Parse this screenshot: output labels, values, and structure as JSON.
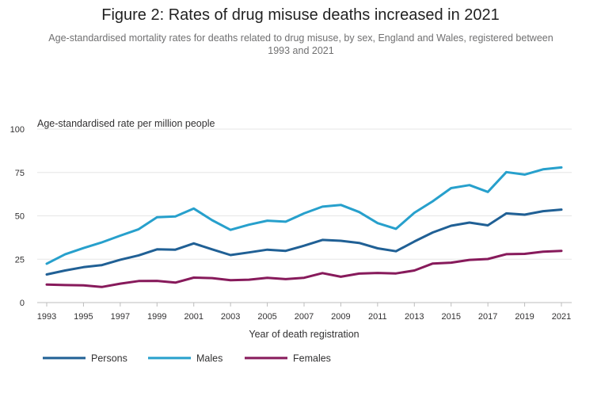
{
  "chart_data": {
    "type": "line",
    "title": "Figure 2: Rates of drug misuse deaths increased in 2021",
    "subtitle": "Age-standardised mortality rates for deaths related to drug misuse, by sex, England and Wales, registered between 1993 and 2021",
    "ylabel": "Age-standardised rate per million people",
    "xlabel": "Year of death registration",
    "ylim": [
      0,
      100
    ],
    "yticks": [
      0,
      25,
      50,
      75,
      100
    ],
    "xticks": [
      1993,
      1995,
      1997,
      1999,
      2001,
      2003,
      2005,
      2007,
      2009,
      2011,
      2013,
      2015,
      2017,
      2019,
      2021
    ],
    "grid": "horizontal",
    "legend_position": "bottom-left",
    "x": [
      1993,
      1994,
      1995,
      1996,
      1997,
      1998,
      1999,
      2000,
      2001,
      2002,
      2003,
      2004,
      2005,
      2006,
      2007,
      2008,
      2009,
      2010,
      2011,
      2012,
      2013,
      2014,
      2015,
      2016,
      2017,
      2018,
      2019,
      2020,
      2021
    ],
    "series": [
      {
        "name": "Persons",
        "color": "#206095",
        "values": [
          16.2,
          18.5,
          20.4,
          21.6,
          24.7,
          27.2,
          30.7,
          30.5,
          34.1,
          30.7,
          27.4,
          28.9,
          30.5,
          29.8,
          32.8,
          36.1,
          35.6,
          34.4,
          31.3,
          29.6,
          35.2,
          40.4,
          44.3,
          46.1,
          44.5,
          51.4,
          50.7,
          52.7,
          53.6
        ]
      },
      {
        "name": "Males",
        "color": "#27A0CC",
        "values": [
          22.4,
          27.8,
          31.4,
          34.7,
          38.6,
          42.3,
          49.2,
          49.7,
          54.2,
          47.5,
          41.9,
          44.9,
          47.2,
          46.6,
          51.4,
          55.3,
          56.3,
          52.2,
          45.8,
          42.5,
          51.8,
          58.4,
          66.0,
          67.7,
          63.8,
          75.2,
          73.8,
          76.8,
          77.9
        ]
      },
      {
        "name": "Females",
        "color": "#871A5B",
        "values": [
          10.4,
          10.1,
          9.9,
          9.0,
          10.9,
          12.4,
          12.5,
          11.5,
          14.4,
          14.1,
          12.9,
          13.2,
          14.3,
          13.5,
          14.3,
          17.0,
          14.9,
          16.7,
          17.1,
          16.8,
          18.5,
          22.5,
          23.0,
          24.6,
          25.1,
          27.9,
          28.1,
          29.3,
          29.8
        ]
      }
    ]
  }
}
